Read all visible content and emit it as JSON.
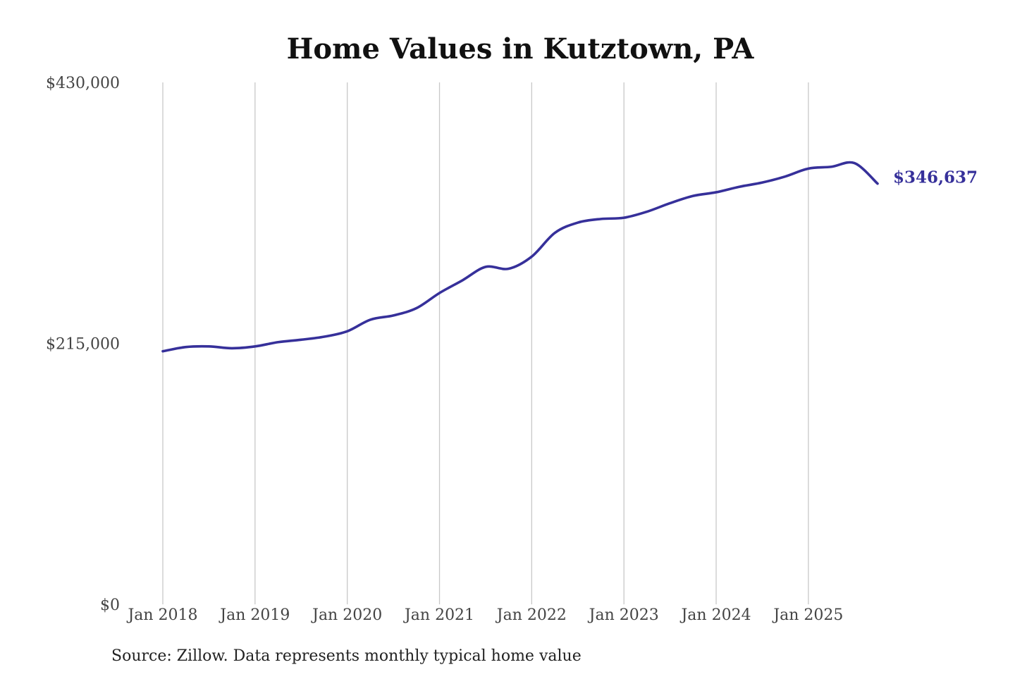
{
  "chart_data": {
    "type": "line",
    "title": "Home Values in Kutztown, PA",
    "xlabel": "",
    "ylabel": "",
    "ylim": [
      0,
      430000
    ],
    "y_ticks": [
      {
        "value": 0,
        "label": "$0"
      },
      {
        "value": 215000,
        "label": "$215,000"
      },
      {
        "value": 430000,
        "label": "$430,000"
      }
    ],
    "x_ticks": [
      {
        "value": 2018.0,
        "label": "Jan 2018"
      },
      {
        "value": 2019.0,
        "label": "Jan 2019"
      },
      {
        "value": 2020.0,
        "label": "Jan 2020"
      },
      {
        "value": 2021.0,
        "label": "Jan 2021"
      },
      {
        "value": 2022.0,
        "label": "Jan 2022"
      },
      {
        "value": 2023.0,
        "label": "Jan 2023"
      },
      {
        "value": 2024.0,
        "label": "Jan 2024"
      },
      {
        "value": 2025.0,
        "label": "Jan 2025"
      }
    ],
    "xlim": [
      2018.0,
      2025.75
    ],
    "grid": "vertical",
    "color": "#36309a",
    "series": [
      {
        "points": [
          {
            "x": 2018.0,
            "y": 208500
          },
          {
            "x": 2018.25,
            "y": 212000
          },
          {
            "x": 2018.5,
            "y": 212500
          },
          {
            "x": 2018.75,
            "y": 211000
          },
          {
            "x": 2019.0,
            "y": 212500
          },
          {
            "x": 2019.25,
            "y": 216000
          },
          {
            "x": 2019.5,
            "y": 218000
          },
          {
            "x": 2019.75,
            "y": 220500
          },
          {
            "x": 2020.0,
            "y": 225000
          },
          {
            "x": 2020.25,
            "y": 234500
          },
          {
            "x": 2020.5,
            "y": 238000
          },
          {
            "x": 2020.75,
            "y": 244000
          },
          {
            "x": 2021.0,
            "y": 256500
          },
          {
            "x": 2021.25,
            "y": 267000
          },
          {
            "x": 2021.5,
            "y": 278000
          },
          {
            "x": 2021.75,
            "y": 276500
          },
          {
            "x": 2022.0,
            "y": 286500
          },
          {
            "x": 2022.25,
            "y": 306000
          },
          {
            "x": 2022.5,
            "y": 314500
          },
          {
            "x": 2022.75,
            "y": 317500
          },
          {
            "x": 2023.0,
            "y": 318500
          },
          {
            "x": 2023.25,
            "y": 323500
          },
          {
            "x": 2023.5,
            "y": 330500
          },
          {
            "x": 2023.75,
            "y": 336500
          },
          {
            "x": 2024.0,
            "y": 339500
          },
          {
            "x": 2024.25,
            "y": 344000
          },
          {
            "x": 2024.5,
            "y": 347500
          },
          {
            "x": 2024.75,
            "y": 352500
          },
          {
            "x": 2025.0,
            "y": 359000
          },
          {
            "x": 2025.25,
            "y": 360500
          },
          {
            "x": 2025.5,
            "y": 363500
          },
          {
            "x": 2025.75,
            "y": 346637
          }
        ],
        "end_label": "$346,637"
      }
    ]
  },
  "source_note": "Source: Zillow. Data represents monthly typical home value"
}
